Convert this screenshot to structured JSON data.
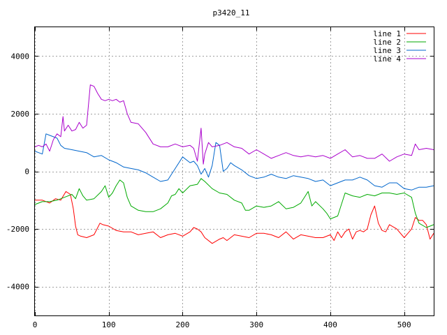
{
  "chart_data": {
    "type": "line",
    "title": "p3420_11",
    "xlabel": "",
    "ylabel": "",
    "xlim": [
      0,
      540
    ],
    "ylim": [
      -5000,
      5000
    ],
    "x_ticks": [
      0,
      100,
      200,
      300,
      400,
      500
    ],
    "y_ticks": [
      -4000,
      -2000,
      0,
      2000,
      4000
    ],
    "grid": true,
    "legend_position": "top-right",
    "series": [
      {
        "name": "line 1",
        "color": "#ff0000",
        "x": [
          0,
          10,
          20,
          28,
          35,
          42,
          48,
          52,
          55,
          58,
          62,
          70,
          80,
          88,
          92,
          100,
          110,
          120,
          130,
          140,
          150,
          160,
          170,
          180,
          190,
          200,
          210,
          215,
          220,
          225,
          230,
          240,
          250,
          255,
          260,
          270,
          280,
          290,
          300,
          310,
          320,
          330,
          340,
          350,
          360,
          370,
          380,
          390,
          400,
          405,
          410,
          415,
          420,
          425,
          430,
          435,
          440,
          445,
          450,
          455,
          460,
          465,
          470,
          475,
          480,
          490,
          500,
          505,
          510,
          515,
          520,
          525,
          530,
          535,
          540
        ],
        "y": [
          -1000,
          -1000,
          -1100,
          -950,
          -1000,
          -700,
          -800,
          -1300,
          -1900,
          -2200,
          -2250,
          -2300,
          -2200,
          -1800,
          -1850,
          -1900,
          -2050,
          -2100,
          -2100,
          -2200,
          -2150,
          -2100,
          -2300,
          -2200,
          -2150,
          -2250,
          -2100,
          -1950,
          -2000,
          -2100,
          -2300,
          -2500,
          -2350,
          -2300,
          -2400,
          -2200,
          -2250,
          -2300,
          -2150,
          -2150,
          -2200,
          -2300,
          -2100,
          -2350,
          -2200,
          -2250,
          -2300,
          -2300,
          -2200,
          -2400,
          -2100,
          -2300,
          -2100,
          -2000,
          -2350,
          -2100,
          -2050,
          -2100,
          -2000,
          -1500,
          -1200,
          -1800,
          -2050,
          -2100,
          -1850,
          -2000,
          -2300,
          -2150,
          -2000,
          -1600,
          -1700,
          -1700,
          -1850,
          -2350,
          -2150
        ]
      },
      {
        "name": "line 2",
        "color": "#00aa00",
        "x": [
          0,
          10,
          20,
          30,
          40,
          50,
          55,
          60,
          65,
          70,
          80,
          90,
          95,
          100,
          105,
          110,
          115,
          120,
          125,
          130,
          140,
          150,
          160,
          170,
          180,
          185,
          190,
          195,
          200,
          210,
          220,
          225,
          230,
          240,
          250,
          260,
          270,
          280,
          285,
          290,
          300,
          310,
          320,
          330,
          340,
          350,
          360,
          370,
          375,
          380,
          390,
          395,
          400,
          410,
          420,
          430,
          440,
          450,
          460,
          470,
          480,
          490,
          500,
          510,
          515,
          520,
          530,
          535,
          540
        ],
        "y": [
          -1150,
          -1050,
          -1050,
          -1000,
          -900,
          -800,
          -950,
          -600,
          -850,
          -1000,
          -950,
          -700,
          -500,
          -900,
          -750,
          -500,
          -300,
          -400,
          -900,
          -1200,
          -1350,
          -1400,
          -1400,
          -1300,
          -1100,
          -850,
          -800,
          -600,
          -750,
          -500,
          -450,
          -250,
          -350,
          -600,
          -750,
          -800,
          -1000,
          -1100,
          -1350,
          -1350,
          -1200,
          -1250,
          -1200,
          -1050,
          -1300,
          -1250,
          -1100,
          -700,
          -1200,
          -1050,
          -1300,
          -1450,
          -1650,
          -1550,
          -750,
          -850,
          -900,
          -800,
          -850,
          -750,
          -750,
          -800,
          -750,
          -900,
          -1450,
          -1800,
          -1950,
          -1900,
          -1850
        ]
      },
      {
        "name": "line 3",
        "color": "#0066cc",
        "x": [
          0,
          5,
          10,
          15,
          20,
          25,
          30,
          35,
          40,
          50,
          60,
          70,
          80,
          90,
          100,
          110,
          120,
          130,
          140,
          150,
          160,
          170,
          180,
          185,
          190,
          195,
          200,
          210,
          215,
          220,
          225,
          230,
          235,
          240,
          245,
          250,
          255,
          260,
          265,
          270,
          280,
          290,
          300,
          310,
          320,
          330,
          340,
          350,
          360,
          370,
          380,
          390,
          400,
          410,
          420,
          430,
          440,
          450,
          460,
          470,
          480,
          490,
          500,
          510,
          520,
          530,
          540
        ],
        "y": [
          700,
          650,
          600,
          1300,
          1250,
          1200,
          1150,
          900,
          800,
          750,
          700,
          650,
          500,
          550,
          400,
          300,
          150,
          100,
          50,
          -50,
          -200,
          -350,
          -300,
          -100,
          100,
          300,
          500,
          300,
          350,
          200,
          -100,
          100,
          -200,
          200,
          1000,
          900,
          0,
          100,
          300,
          200,
          50,
          -150,
          -250,
          -200,
          -100,
          -200,
          -250,
          -150,
          -200,
          -250,
          -350,
          -300,
          -500,
          -400,
          -300,
          -300,
          -200,
          -300,
          -500,
          -550,
          -400,
          -400,
          -600,
          -650,
          -550,
          -550,
          -500
        ]
      },
      {
        "name": "line 4",
        "color": "#aa00cc",
        "x": [
          0,
          5,
          10,
          15,
          20,
          25,
          30,
          35,
          38,
          40,
          45,
          50,
          55,
          60,
          65,
          70,
          75,
          80,
          85,
          90,
          95,
          100,
          105,
          110,
          115,
          120,
          125,
          130,
          140,
          150,
          160,
          170,
          180,
          190,
          200,
          210,
          215,
          220,
          225,
          228,
          230,
          235,
          240,
          250,
          260,
          270,
          280,
          290,
          300,
          310,
          320,
          330,
          340,
          350,
          360,
          370,
          380,
          390,
          400,
          410,
          420,
          430,
          440,
          450,
          460,
          470,
          480,
          490,
          500,
          510,
          515,
          520,
          530,
          540
        ],
        "y": [
          850,
          900,
          850,
          950,
          700,
          1100,
          1300,
          1200,
          1900,
          1400,
          1600,
          1400,
          1450,
          1700,
          1500,
          1600,
          3000,
          2950,
          2700,
          2500,
          2450,
          2500,
          2450,
          2500,
          2400,
          2450,
          2000,
          1700,
          1650,
          1350,
          950,
          850,
          850,
          950,
          850,
          900,
          800,
          350,
          1500,
          250,
          600,
          1000,
          850,
          900,
          1000,
          850,
          800,
          600,
          750,
          600,
          450,
          550,
          650,
          550,
          500,
          550,
          500,
          550,
          450,
          600,
          750,
          500,
          550,
          450,
          450,
          600,
          350,
          500,
          600,
          550,
          950,
          750,
          800,
          750
        ]
      }
    ]
  }
}
